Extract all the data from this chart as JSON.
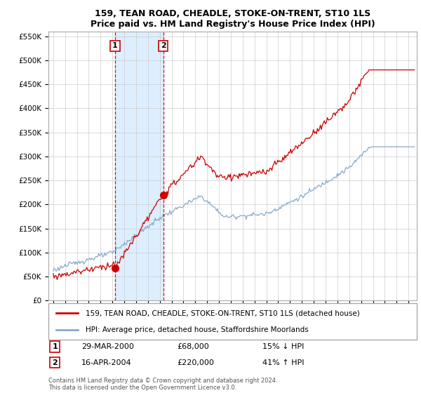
{
  "title": "159, TEAN ROAD, CHEADLE, STOKE-ON-TRENT, ST10 1LS",
  "subtitle": "Price paid vs. HM Land Registry's House Price Index (HPI)",
  "ylim": [
    0,
    560000
  ],
  "yticks": [
    0,
    50000,
    100000,
    150000,
    200000,
    250000,
    300000,
    350000,
    400000,
    450000,
    500000,
    550000
  ],
  "ytick_labels": [
    "£0",
    "£50K",
    "£100K",
    "£150K",
    "£200K",
    "£250K",
    "£300K",
    "£350K",
    "£400K",
    "£450K",
    "£500K",
    "£550K"
  ],
  "legend_line1": "159, TEAN ROAD, CHEADLE, STOKE-ON-TRENT, ST10 1LS (detached house)",
  "legend_line2": "HPI: Average price, detached house, Staffordshire Moorlands",
  "sale1_date": "29-MAR-2000",
  "sale1_price": "£68,000",
  "sale1_hpi": "15% ↓ HPI",
  "sale2_date": "16-APR-2004",
  "sale2_price": "£220,000",
  "sale2_hpi": "41% ↑ HPI",
  "footer": "Contains HM Land Registry data © Crown copyright and database right 2024.\nThis data is licensed under the Open Government Licence v3.0.",
  "line_color_red": "#cc0000",
  "line_color_blue": "#88aacc",
  "vline_color": "#cc0000",
  "fill_color": "#ddeeff",
  "background_color": "#ffffff",
  "grid_color": "#cccccc",
  "sale1_x": 2000.23,
  "sale1_y": 68000,
  "sale2_x": 2004.29,
  "sale2_y": 220000,
  "xlim_left": 1994.6,
  "xlim_right": 2025.7
}
